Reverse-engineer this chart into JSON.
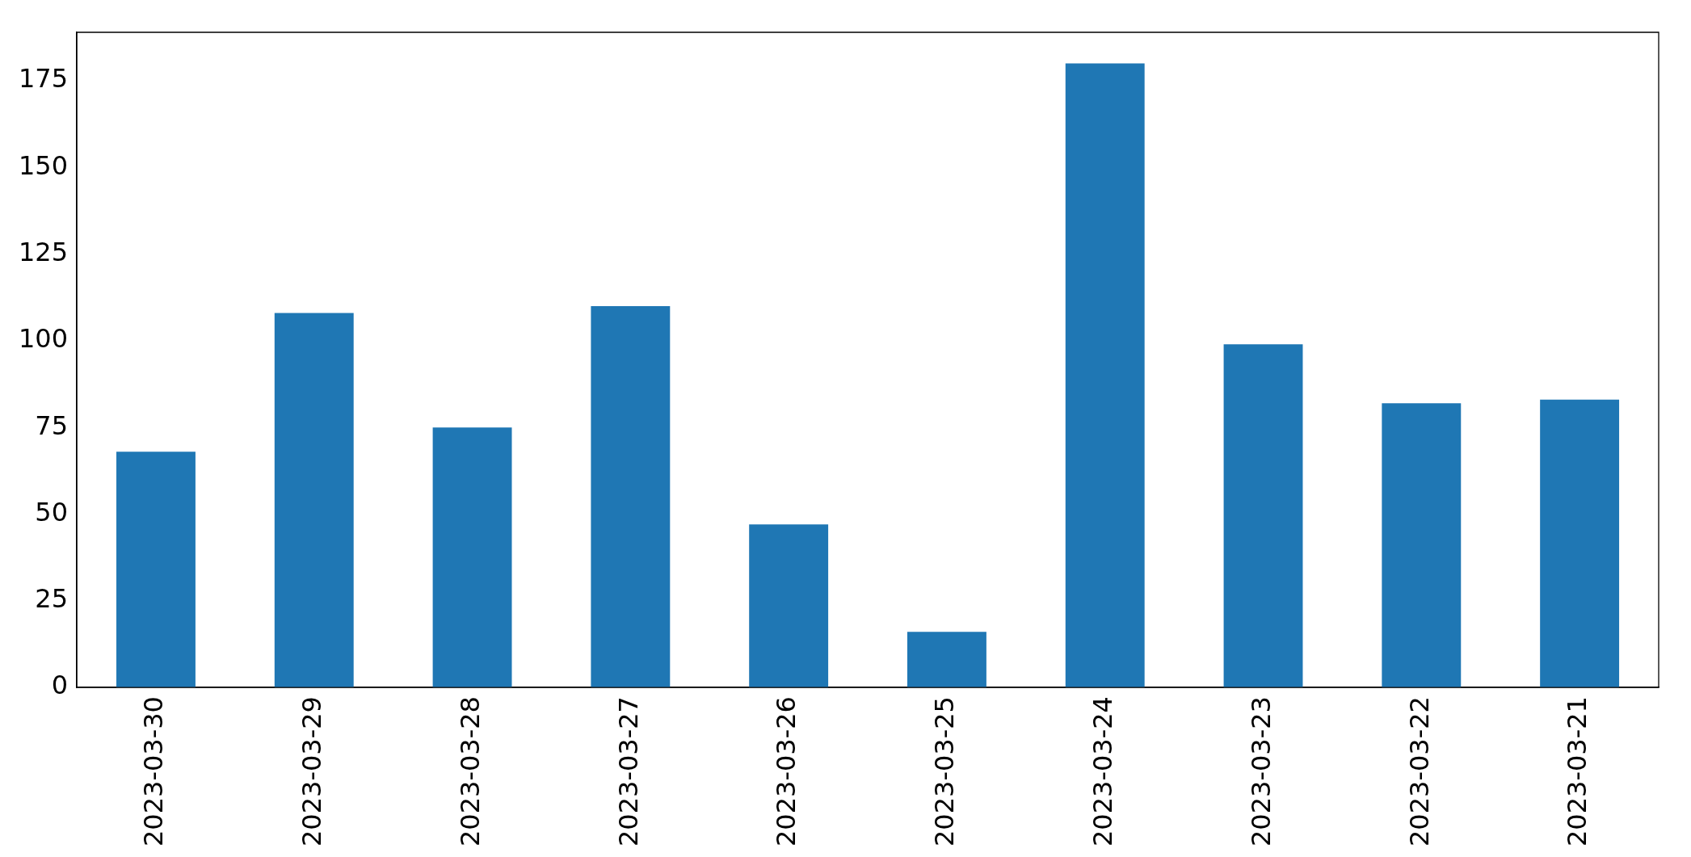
{
  "chart_data": {
    "type": "bar",
    "categories": [
      "2023-03-30",
      "2023-03-29",
      "2023-03-28",
      "2023-03-27",
      "2023-03-26",
      "2023-03-25",
      "2023-03-24",
      "2023-03-23",
      "2023-03-22",
      "2023-03-21"
    ],
    "values": [
      68,
      108,
      75,
      110,
      47,
      16,
      180,
      99,
      82,
      83
    ],
    "color": "#1f77b4",
    "ylim": [
      0,
      189
    ],
    "yticks": [
      0,
      25,
      50,
      75,
      100,
      125,
      150,
      175
    ],
    "grid": false,
    "legend": false
  }
}
